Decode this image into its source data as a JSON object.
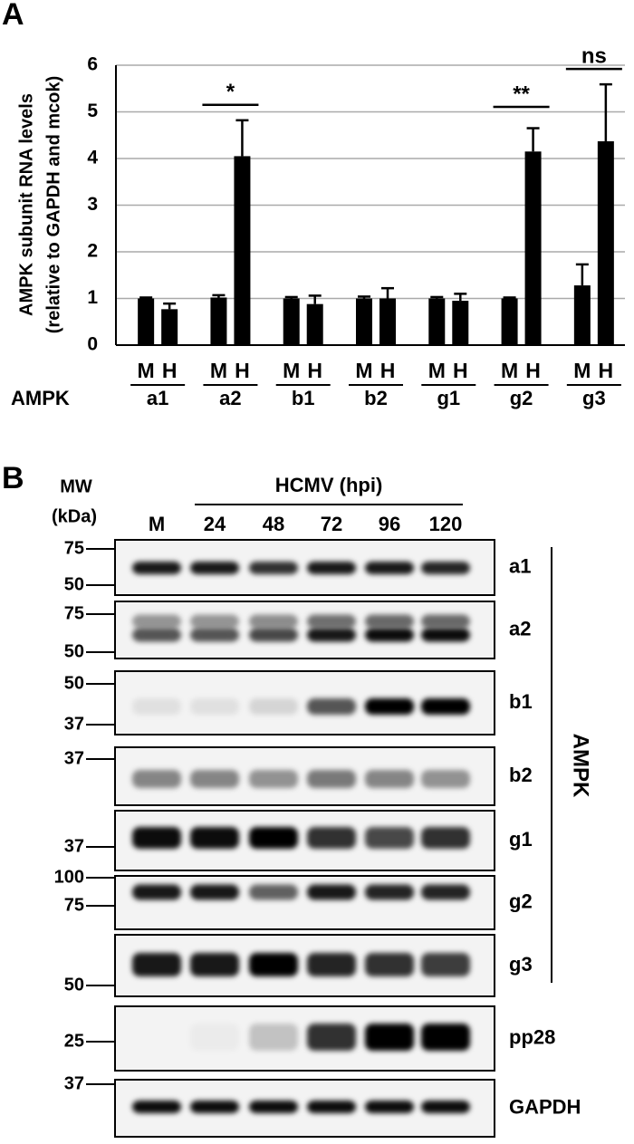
{
  "panel_a": "A",
  "chart_data": {
    "type": "bar",
    "y_label_lines": [
      "AMPK subunit RNA levels",
      "(relative to GAPDH and mcok)"
    ],
    "x_label": "AMPK",
    "categories": [
      "a1",
      "a2",
      "b1",
      "b2",
      "g1",
      "g2",
      "g3"
    ],
    "series": [
      {
        "name": "M",
        "color": "#000000",
        "values": [
          1.0,
          1.02,
          1.0,
          1.0,
          1.0,
          1.0,
          1.28
        ],
        "errors": [
          0.02,
          0.05,
          0.03,
          0.04,
          0.03,
          0.02,
          0.45
        ]
      },
      {
        "name": "H",
        "color": "#000000",
        "values": [
          0.77,
          4.05,
          0.88,
          1.0,
          0.95,
          4.15,
          4.37
        ],
        "errors": [
          0.12,
          0.77,
          0.18,
          0.22,
          0.15,
          0.5,
          1.22
        ]
      }
    ],
    "ylim": [
      0,
      6
    ],
    "yticks": [
      0,
      1,
      2,
      3,
      4,
      5,
      6
    ],
    "grid": true,
    "annotations": [
      {
        "text": "*",
        "category": "a2"
      },
      {
        "text": "**",
        "category": "g2"
      },
      {
        "text": "ns",
        "category": "g3"
      }
    ]
  },
  "panel_b": {
    "label": "B",
    "mw_label": [
      "MW",
      "(kDa)"
    ],
    "group_label": "HCMV (hpi)",
    "lanes": [
      "M",
      "24",
      "48",
      "72",
      "96",
      "120"
    ],
    "bracket_label": "AMPK",
    "blots": [
      {
        "name": "a1",
        "markers": [
          "75",
          "50"
        ]
      },
      {
        "name": "a2",
        "markers": [
          "75",
          "50"
        ]
      },
      {
        "name": "b1",
        "markers": [
          "50",
          "37"
        ]
      },
      {
        "name": "b2",
        "markers": [
          "37"
        ]
      },
      {
        "name": "g1",
        "markers": [
          "37"
        ]
      },
      {
        "name": "g2",
        "markers": [
          "100",
          "75"
        ]
      },
      {
        "name": "g3",
        "markers": [
          "50"
        ]
      },
      {
        "name": "pp28",
        "markers": [
          "25"
        ]
      },
      {
        "name": "GAPDH",
        "markers": [
          "37"
        ]
      }
    ]
  }
}
